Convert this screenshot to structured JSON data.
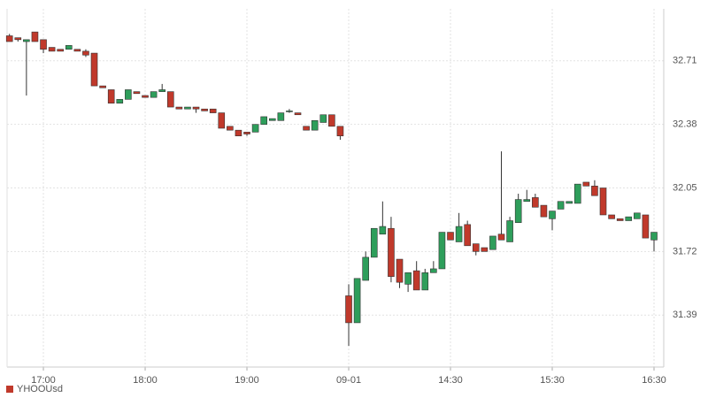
{
  "chart_data": {
    "type": "candlestick",
    "categories": [
      null,
      null,
      null,
      null,
      "17:00",
      null,
      null,
      null,
      null,
      null,
      null,
      null,
      null,
      null,
      null,
      null,
      "18:00",
      null,
      null,
      null,
      null,
      null,
      null,
      null,
      null,
      null,
      null,
      null,
      "19:00",
      null,
      null,
      null,
      null,
      null,
      null,
      null,
      null,
      null,
      null,
      null,
      "09-01",
      null,
      null,
      null,
      null,
      null,
      null,
      null,
      null,
      null,
      null,
      null,
      "14:30",
      null,
      null,
      null,
      null,
      null,
      null,
      null,
      null,
      null,
      null,
      null,
      "15:30",
      null,
      null,
      null,
      null,
      null,
      null,
      null,
      null,
      null,
      null,
      null,
      "16:30"
    ],
    "series": [
      {
        "name": "YHOOUsd",
        "color": "#c0392b",
        "up_color": "#2e9e5b",
        "open": [
          32.84,
          32.83,
          32.81,
          32.86,
          32.82,
          32.78,
          32.77,
          32.77,
          32.77,
          32.76,
          32.75,
          32.58,
          32.56,
          32.49,
          32.51,
          32.55,
          32.53,
          32.52,
          32.55,
          32.55,
          32.47,
          32.46,
          32.47,
          32.46,
          32.46,
          32.44,
          32.37,
          32.35,
          32.34,
          32.34,
          32.38,
          32.4,
          32.4,
          32.45,
          32.44,
          32.37,
          32.35,
          32.39,
          32.43,
          32.37,
          31.49,
          31.35,
          31.57,
          31.69,
          31.81,
          31.84,
          31.68,
          31.55,
          31.62,
          31.52,
          31.61,
          31.63,
          31.82,
          31.77,
          31.86,
          31.76,
          31.74,
          31.73,
          31.81,
          31.77,
          31.87,
          31.98,
          32.0,
          31.96,
          31.89,
          31.94,
          31.97,
          31.97,
          32.08,
          32.06,
          32.05,
          31.91,
          31.89,
          31.88,
          31.89,
          31.91,
          31.78
        ],
        "high": [
          32.85,
          32.83,
          32.82,
          32.86,
          32.82,
          32.78,
          32.77,
          32.79,
          32.77,
          32.77,
          32.75,
          32.58,
          32.56,
          32.51,
          32.56,
          32.55,
          32.53,
          32.55,
          32.59,
          32.55,
          32.47,
          32.47,
          32.47,
          32.46,
          32.46,
          32.44,
          32.37,
          32.35,
          32.34,
          32.38,
          32.42,
          32.41,
          32.44,
          32.46,
          32.44,
          32.37,
          32.4,
          32.43,
          32.43,
          32.37,
          31.55,
          31.58,
          31.72,
          31.84,
          31.98,
          31.9,
          31.68,
          31.61,
          31.67,
          31.63,
          31.67,
          31.82,
          31.82,
          31.92,
          31.88,
          31.76,
          31.74,
          31.8,
          32.24,
          31.9,
          32.02,
          32.04,
          32.02,
          31.96,
          31.93,
          31.98,
          31.98,
          32.07,
          32.08,
          32.09,
          32.05,
          31.91,
          31.89,
          31.9,
          31.92,
          31.91,
          31.82
        ],
        "low": [
          32.81,
          32.81,
          32.53,
          32.81,
          32.75,
          32.76,
          32.76,
          32.77,
          32.76,
          32.73,
          32.58,
          32.57,
          32.49,
          32.49,
          32.51,
          32.54,
          32.52,
          32.52,
          32.55,
          32.47,
          32.46,
          32.46,
          32.44,
          32.45,
          32.44,
          32.36,
          32.35,
          32.32,
          32.32,
          32.34,
          32.38,
          32.4,
          32.4,
          32.44,
          32.43,
          32.35,
          32.35,
          32.39,
          32.37,
          32.3,
          31.23,
          31.35,
          31.57,
          31.69,
          31.81,
          31.56,
          31.53,
          31.51,
          31.52,
          31.52,
          31.61,
          31.63,
          31.78,
          31.77,
          31.75,
          31.7,
          31.72,
          31.73,
          31.78,
          31.77,
          31.87,
          31.98,
          31.95,
          31.9,
          31.83,
          31.94,
          31.97,
          31.97,
          32.06,
          32.01,
          31.91,
          31.89,
          31.88,
          31.88,
          31.89,
          31.79,
          31.72
        ],
        "close": [
          32.81,
          32.82,
          32.82,
          32.81,
          32.77,
          32.76,
          32.76,
          32.79,
          32.76,
          32.74,
          32.58,
          32.57,
          32.49,
          32.51,
          32.56,
          32.54,
          32.52,
          32.55,
          32.56,
          32.47,
          32.46,
          32.47,
          32.46,
          32.45,
          32.44,
          32.36,
          32.35,
          32.32,
          32.33,
          32.38,
          32.42,
          32.41,
          32.44,
          32.45,
          32.43,
          32.35,
          32.4,
          32.43,
          32.37,
          32.32,
          31.35,
          31.58,
          31.69,
          31.84,
          31.85,
          31.59,
          31.56,
          31.61,
          31.52,
          31.61,
          31.63,
          31.82,
          31.78,
          31.85,
          31.75,
          31.72,
          31.72,
          31.8,
          31.78,
          31.88,
          31.99,
          31.99,
          31.95,
          31.9,
          31.93,
          31.98,
          31.98,
          32.07,
          32.06,
          32.01,
          31.91,
          31.89,
          31.88,
          31.9,
          31.92,
          31.79,
          31.82
        ]
      }
    ],
    "ylim": [
      31.12,
      32.98
    ],
    "yticks": [
      32.71,
      32.38,
      32.05,
      31.72,
      31.39
    ],
    "grid": true,
    "legend": "bottom-left"
  }
}
